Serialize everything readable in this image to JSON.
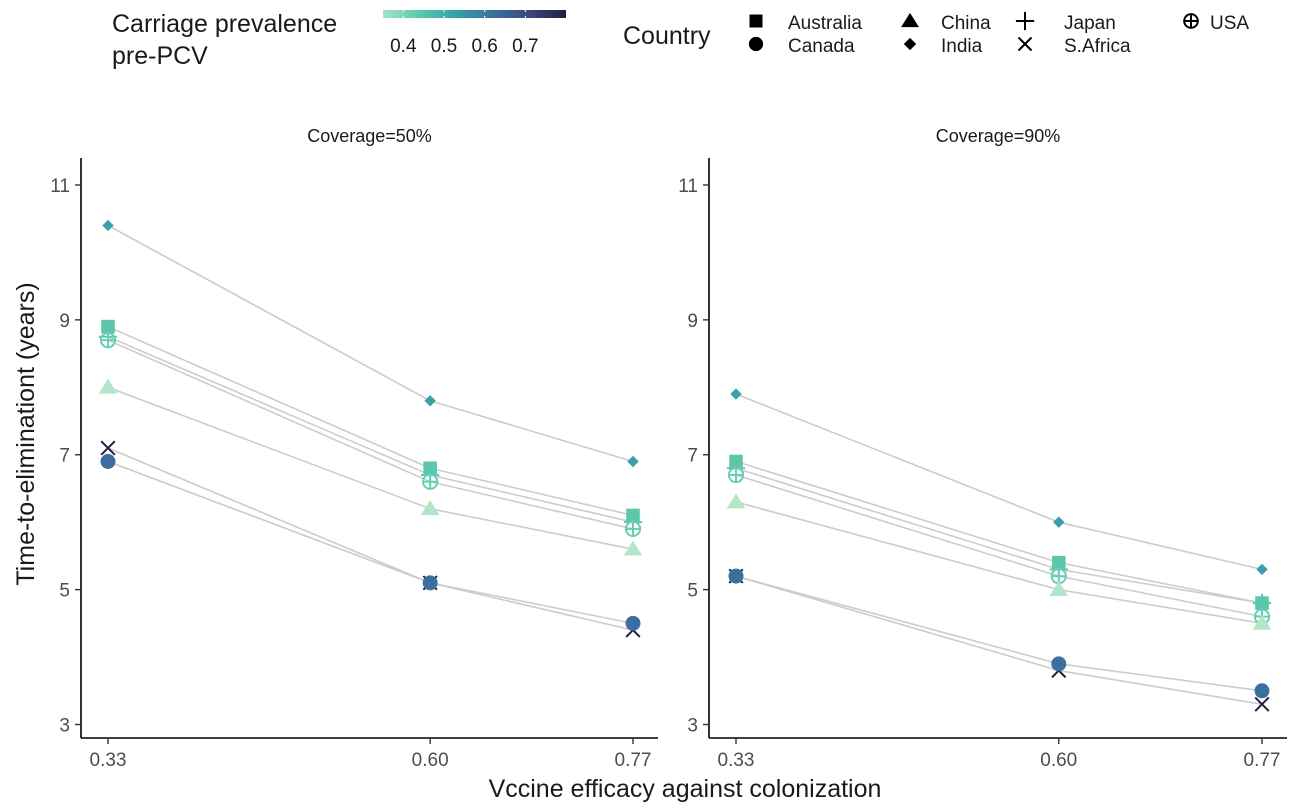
{
  "chart_data": {
    "type": "scatter",
    "xlabel": "Vccine efficacy against colonization",
    "ylabel": "Time-to-eliminationt (years)",
    "x_ticks": [
      0.33,
      0.6,
      0.77
    ],
    "x_tick_labels": [
      "0.33",
      "0.60",
      "0.77"
    ],
    "y_ticks": [
      3,
      5,
      7,
      9,
      11
    ],
    "y_tick_labels": [
      "3",
      "5",
      "7",
      "9",
      "11"
    ],
    "ylim": [
      2.8,
      11.4
    ],
    "grid": false,
    "legend": {
      "color_title_line1": "Carriage prevalence",
      "color_title_line2": "pre-PCV",
      "color_ticks": [
        "0.4",
        "0.5",
        "0.6",
        "0.7"
      ],
      "color_tick_values": [
        0.4,
        0.5,
        0.6,
        0.7
      ],
      "color_range": [
        0.35,
        0.8
      ],
      "color_stops": [
        "#a6e3c6",
        "#59c9ad",
        "#36a0aa",
        "#3b6f9f",
        "#3b4a80",
        "#251d3c"
      ],
      "shape_title": "Country",
      "countries": [
        {
          "name": "Australia",
          "shape": "square"
        },
        {
          "name": "Canada",
          "shape": "circle"
        },
        {
          "name": "China",
          "shape": "triangle"
        },
        {
          "name": "India",
          "shape": "diamond"
        },
        {
          "name": "Japan",
          "shape": "plus"
        },
        {
          "name": "S.Africa",
          "shape": "cross"
        },
        {
          "name": "USA",
          "shape": "circle-plus"
        }
      ]
    },
    "panels": [
      {
        "title": "Coverage=50%",
        "series": [
          {
            "name": "India",
            "shape": "diamond",
            "color": "#3aa0aa",
            "x": [
              0.33,
              0.6,
              0.77
            ],
            "y": [
              10.4,
              7.8,
              6.9
            ]
          },
          {
            "name": "Australia",
            "shape": "square",
            "color": "#5cc7ad",
            "x": [
              0.33,
              0.6,
              0.77
            ],
            "y": [
              8.9,
              6.8,
              6.1
            ]
          },
          {
            "name": "Japan",
            "shape": "plus",
            "color": "#5cc7ad",
            "x": [
              0.33,
              0.6,
              0.77
            ],
            "y": [
              8.75,
              6.7,
              6.0
            ]
          },
          {
            "name": "USA",
            "shape": "circle-plus",
            "color": "#67d0b4",
            "x": [
              0.33,
              0.6,
              0.77
            ],
            "y": [
              8.7,
              6.6,
              5.9
            ]
          },
          {
            "name": "China",
            "shape": "triangle",
            "color": "#b3e6c8",
            "x": [
              0.33,
              0.6,
              0.77
            ],
            "y": [
              8.0,
              6.2,
              5.6
            ]
          },
          {
            "name": "S.Africa",
            "shape": "cross",
            "color": "#261d3f",
            "x": [
              0.33,
              0.6,
              0.77
            ],
            "y": [
              7.1,
              5.1,
              4.4
            ]
          },
          {
            "name": "Canada",
            "shape": "circle",
            "color": "#3c6fa0",
            "x": [
              0.33,
              0.6,
              0.77
            ],
            "y": [
              6.9,
              5.1,
              4.5
            ]
          }
        ]
      },
      {
        "title": "Coverage=90%",
        "series": [
          {
            "name": "India",
            "shape": "diamond",
            "color": "#3aa0aa",
            "x": [
              0.33,
              0.6,
              0.77
            ],
            "y": [
              7.9,
              6.0,
              5.3
            ]
          },
          {
            "name": "Australia",
            "shape": "square",
            "color": "#5cc7ad",
            "x": [
              0.33,
              0.6,
              0.77
            ],
            "y": [
              6.9,
              5.4,
              4.8
            ]
          },
          {
            "name": "Japan",
            "shape": "plus",
            "color": "#5cc7ad",
            "x": [
              0.33,
              0.6,
              0.77
            ],
            "y": [
              6.8,
              5.3,
              4.8
            ]
          },
          {
            "name": "USA",
            "shape": "circle-plus",
            "color": "#67d0b4",
            "x": [
              0.33,
              0.6,
              0.77
            ],
            "y": [
              6.7,
              5.2,
              4.6
            ]
          },
          {
            "name": "China",
            "shape": "triangle",
            "color": "#b3e6c8",
            "x": [
              0.33,
              0.6,
              0.77
            ],
            "y": [
              6.3,
              5.0,
              4.5
            ]
          },
          {
            "name": "S.Africa",
            "shape": "cross",
            "color": "#261d3f",
            "x": [
              0.33,
              0.6,
              0.77
            ],
            "y": [
              5.2,
              3.8,
              3.3
            ]
          },
          {
            "name": "Canada",
            "shape": "circle",
            "color": "#3c6fa0",
            "x": [
              0.33,
              0.6,
              0.77
            ],
            "y": [
              5.2,
              3.9,
              3.5
            ]
          }
        ]
      }
    ]
  }
}
